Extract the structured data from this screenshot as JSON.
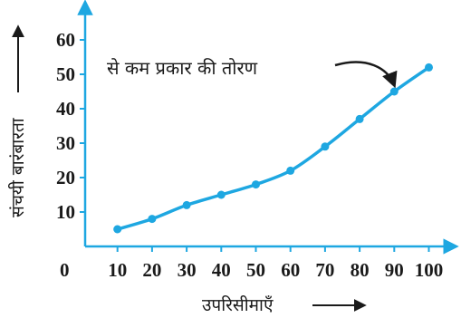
{
  "chart_data": {
    "type": "line",
    "title": "",
    "xlabel": "उपरिसीमाएँ",
    "ylabel": "संचयी बारंबारता",
    "xlim": [
      0,
      100
    ],
    "ylim": [
      0,
      60
    ],
    "x_ticks": [
      10,
      20,
      30,
      40,
      50,
      60,
      70,
      80,
      90,
      100
    ],
    "y_ticks": [
      10,
      20,
      30,
      40,
      50,
      60
    ],
    "origin_label": "0",
    "grid": false,
    "colors": {
      "line": "#1ea7e1",
      "axis": "#1ea7e1",
      "text": "#1a1a1a"
    },
    "series": [
      {
        "x": [
          10,
          20,
          30,
          40,
          50,
          60,
          70,
          80,
          90,
          100
        ],
        "y": [
          5,
          8,
          12,
          15,
          18,
          22,
          29,
          37,
          45,
          52
        ]
      }
    ],
    "annotation": {
      "text": "से कम प्रकार की तोरण",
      "points_to_x": 90
    }
  }
}
